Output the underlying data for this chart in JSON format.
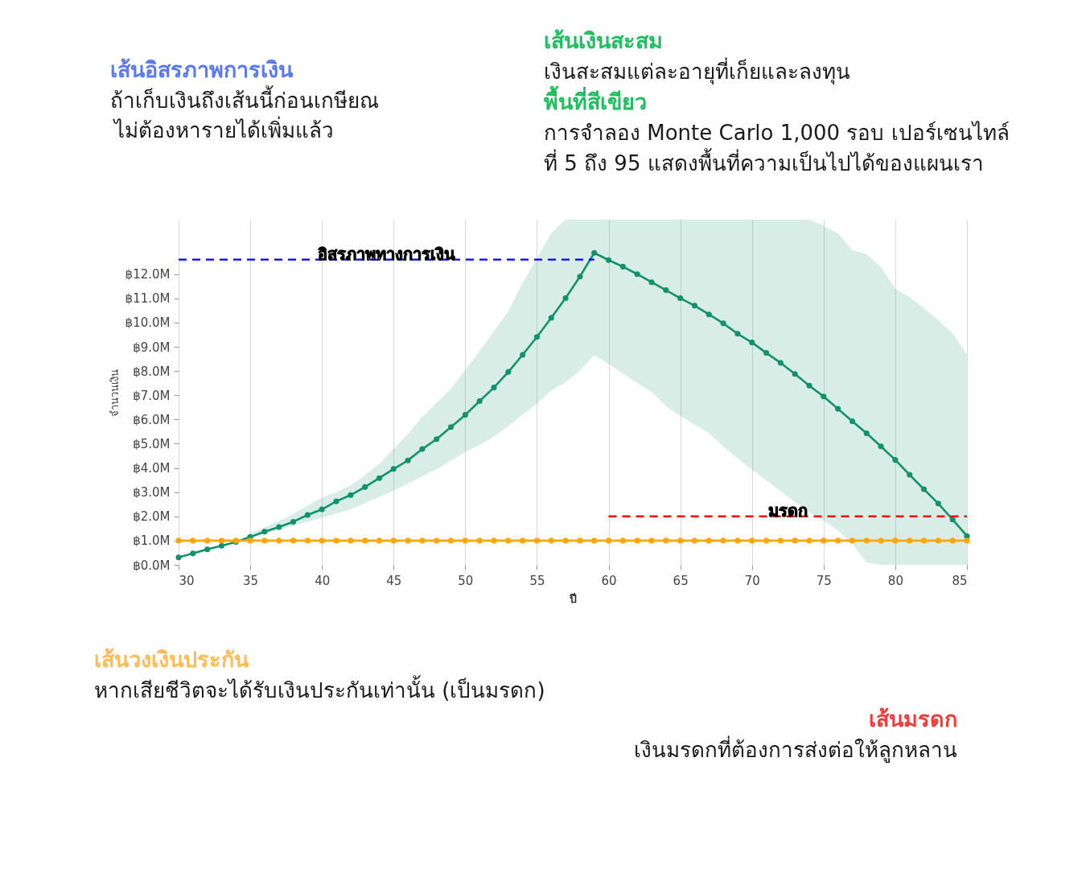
{
  "chart_data": {
    "type": "line",
    "xlabel": "ปี",
    "ylabel": "จำนวนเงิน",
    "x": [
      30,
      31,
      32,
      33,
      34,
      35,
      36,
      37,
      38,
      39,
      40,
      41,
      42,
      43,
      44,
      45,
      46,
      47,
      48,
      49,
      50,
      51,
      52,
      53,
      54,
      55,
      56,
      57,
      58,
      59,
      60,
      61,
      62,
      63,
      64,
      65,
      66,
      67,
      68,
      69,
      70,
      71,
      72,
      73,
      74,
      75,
      76,
      77,
      78,
      79,
      80,
      81,
      82,
      83,
      84,
      85
    ],
    "xlim": [
      30,
      85
    ],
    "xticks": [
      30,
      35,
      40,
      45,
      50,
      55,
      60,
      65,
      70,
      75,
      80,
      85
    ],
    "ylim": [
      0,
      14.25
    ],
    "yticks": [
      {
        "value": 0,
        "label": "฿0.0M"
      },
      {
        "value": 1,
        "label": "฿1.0M"
      },
      {
        "value": 2,
        "label": "฿2.0M"
      },
      {
        "value": 3,
        "label": "฿3.0M"
      },
      {
        "value": 4,
        "label": "฿4.0M"
      },
      {
        "value": 5,
        "label": "฿5.0M"
      },
      {
        "value": 6,
        "label": "฿6.0M"
      },
      {
        "value": 7,
        "label": "฿7.0M"
      },
      {
        "value": 8,
        "label": "฿8.0M"
      },
      {
        "value": 9,
        "label": "฿9.0M"
      },
      {
        "value": 10,
        "label": "฿10.0M"
      },
      {
        "value": 11,
        "label": "฿11.0M"
      },
      {
        "value": 12,
        "label": "฿12.0M"
      }
    ],
    "grid": "x",
    "marker": "circle",
    "series": [
      {
        "color": "#12926a",
        "values": [
          0.31,
          0.47,
          0.64,
          0.79,
          0.95,
          1.15,
          1.37,
          1.56,
          1.78,
          2.06,
          2.29,
          2.62,
          2.88,
          3.21,
          3.58,
          3.96,
          4.31,
          4.78,
          5.19,
          5.69,
          6.19,
          6.76,
          7.32,
          7.96,
          8.67,
          9.41,
          10.2,
          11.01,
          11.9,
          12.88,
          12.58,
          12.31,
          12.0,
          11.67,
          11.34,
          11.01,
          10.7,
          10.34,
          9.97,
          9.54,
          9.18,
          8.75,
          8.34,
          7.88,
          7.4,
          6.95,
          6.44,
          5.93,
          5.43,
          4.89,
          4.33,
          3.72,
          3.12,
          2.53,
          1.87,
          1.19
        ],
        "lower": [
          null,
          null,
          null,
          null,
          0.95,
          1.09,
          1.27,
          1.45,
          1.62,
          1.78,
          1.95,
          2.12,
          2.3,
          2.55,
          2.8,
          3.06,
          3.35,
          3.65,
          3.95,
          4.3,
          4.66,
          4.95,
          5.3,
          5.72,
          6.2,
          6.66,
          7.2,
          7.54,
          8.02,
          8.66,
          8.29,
          7.88,
          7.51,
          7.13,
          6.55,
          6.15,
          5.8,
          5.43,
          4.89,
          4.4,
          3.93,
          3.5,
          3.05,
          2.6,
          2.16,
          1.82,
          1.41,
          0.86,
          0.1,
          0,
          0,
          0,
          0,
          0,
          0,
          0
        ],
        "upper": [
          null,
          null,
          null,
          null,
          0.95,
          1.3,
          1.55,
          1.8,
          2.1,
          2.45,
          2.78,
          3.0,
          3.28,
          3.7,
          4.17,
          4.78,
          5.4,
          6.11,
          6.7,
          7.27,
          8.05,
          8.82,
          9.65,
          10.47,
          11.64,
          12.65,
          13.7,
          14.25,
          14.25,
          14.25,
          14.25,
          14.25,
          14.25,
          14.25,
          14.25,
          14.25,
          14.25,
          14.25,
          14.25,
          14.25,
          14.25,
          14.25,
          14.25,
          14.25,
          14.25,
          14.0,
          13.68,
          13.0,
          12.82,
          12.3,
          11.4,
          11.05,
          10.6,
          10.1,
          9.55,
          8.7
        ]
      },
      {
        "color": "#ffa500",
        "values": [
          1.0,
          1.0,
          1.0,
          1.0,
          1.0,
          1.0,
          1.0,
          1.0,
          1.0,
          1.0,
          1.0,
          1.0,
          1.0,
          1.0,
          1.0,
          1.0,
          1.0,
          1.0,
          1.0,
          1.0,
          1.0,
          1.0,
          1.0,
          1.0,
          1.0,
          1.0,
          1.0,
          1.0,
          1.0,
          1.0,
          1.0,
          1.0,
          1.0,
          1.0,
          1.0,
          1.0,
          1.0,
          1.0,
          1.0,
          1.0,
          1.0,
          1.0,
          1.0,
          1.0,
          1.0,
          1.0,
          1.0,
          1.0,
          1.0,
          1.0,
          1.0,
          1.0,
          1.0,
          1.0,
          1.0,
          1.0
        ]
      },
      {
        "name": "อิสรภาพทางการเงิน",
        "color": "#0000ff",
        "x": [
          30,
          59
        ],
        "values": [
          12.6,
          12.6
        ],
        "marker": "none",
        "line_style": "dashed"
      },
      {
        "name": "มรดก",
        "color": "#ff0000",
        "x": [
          60,
          85
        ],
        "values": [
          2.0,
          2.0
        ],
        "marker": "none",
        "line_style": "dashed"
      }
    ],
    "annotations": [
      "เส้นอิสรภาพการเงิน",
      "ถ้าเก็บเงินถึงเส้นนี้ก่อนเกษียณ",
      "ไม่ต้องหารายได้เพิ่มแล้ว",
      "เส้นเงินสะสม",
      "เงินสะสมแต่ละอายุที่เก็ยและลงทุน",
      "พื้นที่สีเขียว",
      "การจำลอง Monte Carlo 1,000 รอบ เปอร์เซนไทล์",
      "ที่ 5 ถึง 95 แสดงพื้นที่ความเป็นไปได้ของแผนเรา",
      "เส้นวงเงินประกัน",
      "หากเสียชีวิตจะได้รับเงินประกันเท่านั้น (เป็นมรดก)",
      "เส้นมรดก",
      "เงินมรดกที่ต้องการส่งต่อให้ลูกหลาน"
    ]
  }
}
